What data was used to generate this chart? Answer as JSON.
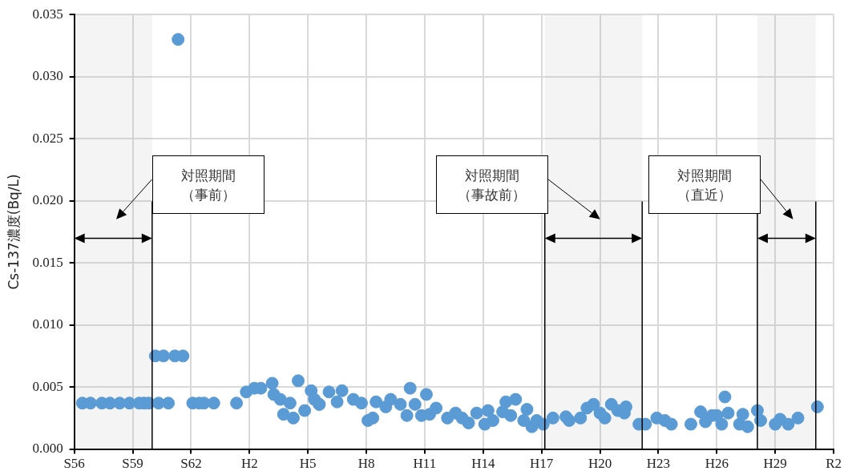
{
  "chart_data": {
    "type": "scatter",
    "ylabel": "Cs-137濃度(Bq/L)",
    "xlim": [
      "1981",
      "2020"
    ],
    "xticks": [
      {
        "value": "1981",
        "label": "S56"
      },
      {
        "value": "1984",
        "label": "S59"
      },
      {
        "value": "1987",
        "label": "S62"
      },
      {
        "value": "1990",
        "label": "H2"
      },
      {
        "value": "1993",
        "label": "H5"
      },
      {
        "value": "1996",
        "label": "H8"
      },
      {
        "value": "1999",
        "label": "H11"
      },
      {
        "value": "2002",
        "label": "H14"
      },
      {
        "value": "2005",
        "label": "H17"
      },
      {
        "value": "2008",
        "label": "H20"
      },
      {
        "value": "2011",
        "label": "H23"
      },
      {
        "value": "2014",
        "label": "H26"
      },
      {
        "value": "2017",
        "label": "H29"
      },
      {
        "value": "2020",
        "label": "R2"
      }
    ],
    "ylim": [
      0,
      0.035
    ],
    "yticks": [
      {
        "value": 0,
        "label": "0.000"
      },
      {
        "value": 0.005,
        "label": "0.005"
      },
      {
        "value": 0.01,
        "label": "0.010"
      },
      {
        "value": 0.015,
        "label": "0.015"
      },
      {
        "value": 0.02,
        "label": "0.020"
      },
      {
        "value": 0.025,
        "label": "0.025"
      },
      {
        "value": 0.03,
        "label": "0.030"
      },
      {
        "value": 0.035,
        "label": "0.035"
      }
    ],
    "grid": true,
    "legend": false,
    "marker": "circle",
    "series": [
      {
        "color": "#5b9bd5",
        "x": [
          "1981-06",
          "1981-11",
          "1982-06",
          "1982-11",
          "1983-05",
          "1983-11",
          "1984-05",
          "1984-08",
          "1984-11",
          "1985-05",
          "1985-11",
          "1985-03",
          "1985-08",
          "1986-03",
          "1986-08",
          "1986-05",
          "1987-02",
          "1987-06",
          "1987-09",
          "1988-03",
          "1989-05",
          "1989-11",
          "1990-04",
          "1990-08",
          "1991-03",
          "1991-04",
          "1991-08",
          "1992-02",
          "1991-10",
          "1992-04",
          "1992-11",
          "1992-07",
          "1993-03",
          "1993-05",
          "1993-08",
          "1993-08",
          "1994-02",
          "1994-07",
          "1994-10",
          "1995-05",
          "1995-10",
          "1996-02",
          "1996-05",
          "1996-07",
          "1997-01",
          "1997-04",
          "1997-10",
          "1998-02",
          "1998-04",
          "1998-07",
          "1998-11",
          "1999-02",
          "1999-04",
          "1999-08",
          "2000-03",
          "2000-08",
          "2000-12",
          "2001-04",
          "2001-09",
          "2002-02",
          "2002-04",
          "2002-07",
          "2003-01",
          "2003-03",
          "2003-09",
          "2003-06",
          "2004-04",
          "2004-02",
          "2004-07",
          "2004-10",
          "2005-02",
          "2005-08",
          "2006-04",
          "2006-06",
          "2007-01",
          "2007-05",
          "2007-09",
          "2008-01",
          "2008-04",
          "2008-08",
          "2008-12",
          "2009-05",
          "2009-04",
          "2010-01",
          "2010-05",
          "2010-12",
          "2011-05",
          "2011-09",
          "2012-09",
          "2013-03",
          "2013-06",
          "2013-10",
          "2014-01",
          "2014-04",
          "2014-06",
          "2014-08",
          "2015-03",
          "2015-05",
          "2015-08",
          "2016-02",
          "2016-04",
          "2017-01",
          "2017-04",
          "2017-09",
          "2018-03",
          "2019-03"
        ],
        "values": [
          0.0037,
          0.0037,
          0.0037,
          0.0037,
          0.0037,
          0.0037,
          0.0037,
          0.0037,
          0.0037,
          0.0037,
          0.0037,
          0.0075,
          0.0075,
          0.0075,
          0.0075,
          0.033,
          0.0037,
          0.0037,
          0.0037,
          0.0037,
          0.0037,
          0.0046,
          0.0049,
          0.0049,
          0.0053,
          0.0044,
          0.004,
          0.0037,
          0.0028,
          0.0025,
          0.0031,
          0.0055,
          0.0047,
          0.004,
          0.0036,
          0.0036,
          0.0046,
          0.0038,
          0.0047,
          0.004,
          0.0037,
          0.0023,
          0.0025,
          0.0038,
          0.0034,
          0.004,
          0.0036,
          0.0027,
          0.0049,
          0.0036,
          0.0027,
          0.0044,
          0.0028,
          0.0033,
          0.0025,
          0.0029,
          0.0025,
          0.0021,
          0.0029,
          0.002,
          0.0031,
          0.0023,
          0.003,
          0.0038,
          0.004,
          0.0027,
          0.0032,
          0.0023,
          0.0018,
          0.0023,
          0.002,
          0.0025,
          0.0026,
          0.0023,
          0.0025,
          0.0033,
          0.0036,
          0.0029,
          0.0025,
          0.0036,
          0.0031,
          0.0034,
          0.0029,
          0.002,
          0.002,
          0.0025,
          0.0023,
          0.002,
          0.002,
          0.003,
          0.0022,
          0.0027,
          0.0027,
          0.002,
          0.0042,
          0.0029,
          0.002,
          0.0028,
          0.0018,
          0.0031,
          0.0023,
          0.002,
          0.0024,
          0.002,
          0.0025,
          0.0034
        ]
      }
    ],
    "ref_lines": [
      {
        "axis": "x",
        "value": "1985",
        "color": "#000000"
      },
      {
        "axis": "x",
        "value": "2005-03",
        "color": "#000000"
      },
      {
        "axis": "x",
        "value": "2010-03",
        "color": "#000000"
      },
      {
        "axis": "x",
        "value": "2016-02",
        "color": "#000000"
      },
      {
        "axis": "x",
        "value": "2019-02",
        "color": "#000000"
      }
    ],
    "bands": [
      {
        "axis": "x",
        "from": "1981",
        "to": "1985",
        "label": "対照期間（事前）",
        "color": "#a6a6a6"
      },
      {
        "axis": "x",
        "from": "2005-03",
        "to": "2010-03",
        "label": "対照期間（事故前）",
        "color": "#a6a6a6"
      },
      {
        "axis": "x",
        "from": "2016-02",
        "to": "2019-02",
        "label": "対照期間（直近）",
        "color": "#a6a6a6"
      }
    ]
  }
}
